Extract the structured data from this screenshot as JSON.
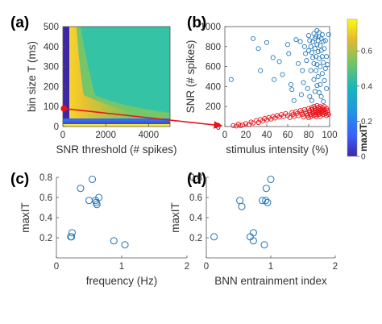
{
  "chart_data": [
    {
      "panel": "(a)",
      "type": "heatmap",
      "xlabel": "SNR threshold (# spikes)",
      "ylabel": "bin size T (ms)",
      "xlim": [
        0,
        5000
      ],
      "ylim": [
        0,
        500
      ],
      "xticks": [
        "0",
        "2000",
        "4000"
      ],
      "yticks": [
        "0",
        "100",
        "200",
        "300",
        "400",
        "500"
      ],
      "colormap": "parula",
      "marker_point": {
        "x": 50,
        "y": 90,
        "color": "#e8141b"
      }
    },
    {
      "panel": "(b)",
      "type": "scatter",
      "xlabel": "stimulus intensity (%)",
      "ylabel": "SNR (# spikes)",
      "xlim": [
        0,
        100
      ],
      "ylim": [
        0,
        1000
      ],
      "xticks": [
        "0",
        "20",
        "40",
        "60",
        "80",
        "100"
      ],
      "yticks": [
        "0",
        "200",
        "400",
        "600",
        "800",
        "1000"
      ],
      "colorbar": {
        "label": "maxIT",
        "ticks": [
          "0",
          "0.2",
          "0.4",
          "0.6"
        ],
        "range": [
          0,
          0.78
        ]
      },
      "series": [
        {
          "color": "#2b7bba",
          "points": [
            [
              6,
              470
            ],
            [
              27,
              880
            ],
            [
              32,
              780
            ],
            [
              34,
              560
            ],
            [
              40,
              840
            ],
            [
              46,
              690
            ],
            [
              47,
              470
            ],
            [
              52,
              650
            ],
            [
              55,
              520
            ],
            [
              60,
              820
            ],
            [
              61,
              730
            ],
            [
              63,
              420
            ],
            [
              64,
              370
            ],
            [
              66,
              260
            ],
            [
              68,
              870
            ],
            [
              70,
              630
            ],
            [
              72,
              850
            ],
            [
              73,
              320
            ],
            [
              74,
              560
            ],
            [
              75,
              440
            ],
            [
              76,
              800
            ],
            [
              77,
              730
            ],
            [
              78,
              660
            ],
            [
              79,
              380
            ],
            [
              80,
              910
            ],
            [
              80,
              760
            ],
            [
              81,
              860
            ],
            [
              81,
              300
            ],
            [
              82,
              800
            ],
            [
              82,
              560
            ],
            [
              83,
              740
            ],
            [
              83,
              260
            ],
            [
              84,
              690
            ],
            [
              84,
              850
            ],
            [
              85,
              930
            ],
            [
              85,
              630
            ],
            [
              85,
              470
            ],
            [
              86,
              880
            ],
            [
              86,
              780
            ],
            [
              86,
              350
            ],
            [
              87,
              900
            ],
            [
              87,
              700
            ],
            [
              87,
              560
            ],
            [
              88,
              960
            ],
            [
              88,
              820
            ],
            [
              88,
              620
            ],
            [
              88,
              410
            ],
            [
              89,
              860
            ],
            [
              89,
              750
            ],
            [
              89,
              500
            ],
            [
              90,
              940
            ],
            [
              90,
              900
            ],
            [
              90,
              680
            ],
            [
              90,
              340
            ],
            [
              91,
              810
            ],
            [
              91,
              600
            ],
            [
              91,
              420
            ],
            [
              92,
              880
            ],
            [
              92,
              760
            ],
            [
              92,
              300
            ],
            [
              93,
              920
            ],
            [
              93,
              700
            ],
            [
              93,
              530
            ],
            [
              94,
              850
            ],
            [
              94,
              640
            ],
            [
              94,
              250
            ],
            [
              95,
              780
            ],
            [
              95,
              460
            ],
            [
              96,
              860
            ],
            [
              96,
              580
            ],
            [
              97,
              700
            ],
            [
              97,
              380
            ],
            [
              98,
              620
            ],
            [
              99,
              920
            ]
          ]
        },
        {
          "color": "#e8141b",
          "points": [
            [
              8,
              10
            ],
            [
              11,
              5
            ],
            [
              13,
              25
            ],
            [
              15,
              8
            ],
            [
              17,
              15
            ],
            [
              20,
              30
            ],
            [
              23,
              20
            ],
            [
              25,
              45
            ],
            [
              27,
              35
            ],
            [
              30,
              60
            ],
            [
              32,
              40
            ],
            [
              34,
              70
            ],
            [
              36,
              55
            ],
            [
              38,
              80
            ],
            [
              40,
              65
            ],
            [
              42,
              90
            ],
            [
              44,
              75
            ],
            [
              46,
              100
            ],
            [
              48,
              85
            ],
            [
              50,
              110
            ],
            [
              52,
              95
            ],
            [
              54,
              120
            ],
            [
              56,
              100
            ],
            [
              58,
              130
            ],
            [
              60,
              110
            ],
            [
              62,
              90
            ],
            [
              64,
              140
            ],
            [
              65,
              120
            ],
            [
              66,
              100
            ],
            [
              68,
              150
            ],
            [
              69,
              130
            ],
            [
              70,
              110
            ],
            [
              72,
              160
            ],
            [
              73,
              140
            ],
            [
              74,
              120
            ],
            [
              75,
              95
            ],
            [
              76,
              170
            ],
            [
              77,
              150
            ],
            [
              78,
              130
            ],
            [
              79,
              110
            ],
            [
              80,
              180
            ],
            [
              80,
              90
            ],
            [
              81,
              160
            ],
            [
              81,
              140
            ],
            [
              82,
              120
            ],
            [
              82,
              100
            ],
            [
              83,
              190
            ],
            [
              83,
              170
            ],
            [
              84,
              150
            ],
            [
              84,
              130
            ],
            [
              85,
              110
            ],
            [
              85,
              200
            ],
            [
              86,
              180
            ],
            [
              86,
              160
            ],
            [
              86,
              140
            ],
            [
              87,
              120
            ],
            [
              87,
              100
            ],
            [
              88,
              210
            ],
            [
              88,
              170
            ],
            [
              88,
              150
            ],
            [
              89,
              130
            ],
            [
              89,
              190
            ],
            [
              90,
              160
            ],
            [
              90,
              140
            ],
            [
              90,
              120
            ],
            [
              91,
              200
            ],
            [
              91,
              180
            ],
            [
              91,
              100
            ],
            [
              92,
              170
            ],
            [
              92,
              150
            ],
            [
              92,
              130
            ],
            [
              93,
              190
            ],
            [
              93,
              160
            ],
            [
              94,
              140
            ],
            [
              94,
              120
            ],
            [
              95,
              200
            ],
            [
              95,
              170
            ],
            [
              96,
              150
            ],
            [
              96,
              130
            ],
            [
              97,
              180
            ],
            [
              97,
              110
            ],
            [
              98,
              160
            ],
            [
              98,
              140
            ],
            [
              99,
              120
            ]
          ]
        }
      ]
    },
    {
      "panel": "(c)",
      "type": "scatter",
      "xlabel": "frequency (Hz)",
      "ylabel": "maxIT",
      "xlim": [
        0,
        2
      ],
      "ylim": [
        0,
        0.8
      ],
      "xticks": [
        "0",
        "1",
        "2"
      ],
      "yticks": [
        "0.2",
        "0.4",
        "0.6",
        "0.8"
      ],
      "color": "#2b7bba",
      "points": [
        [
          0.22,
          0.21
        ],
        [
          0.23,
          0.21
        ],
        [
          0.24,
          0.25
        ],
        [
          0.37,
          0.69
        ],
        [
          0.5,
          0.57
        ],
        [
          0.55,
          0.78
        ],
        [
          0.6,
          0.57
        ],
        [
          0.61,
          0.55
        ],
        [
          0.62,
          0.53
        ],
        [
          0.65,
          0.6
        ],
        [
          0.88,
          0.17
        ],
        [
          1.05,
          0.13
        ]
      ]
    },
    {
      "panel": "(d)",
      "type": "scatter",
      "xlabel": "BNN entrainment index",
      "ylabel": "maxIT",
      "xlim": [
        0,
        2
      ],
      "ylim": [
        0,
        0.8
      ],
      "xticks": [
        "0",
        "1",
        "2"
      ],
      "yticks": [
        "0.2",
        "0.4",
        "0.6",
        "0.8"
      ],
      "color": "#2b7bba",
      "points": [
        [
          0.12,
          0.21
        ],
        [
          0.52,
          0.57
        ],
        [
          0.55,
          0.51
        ],
        [
          0.68,
          0.21
        ],
        [
          0.73,
          0.25
        ],
        [
          0.73,
          0.17
        ],
        [
          0.87,
          0.57
        ],
        [
          0.9,
          0.13
        ],
        [
          0.92,
          0.57
        ],
        [
          0.93,
          0.69
        ],
        [
          0.95,
          0.55
        ],
        [
          1.0,
          0.78
        ]
      ]
    }
  ]
}
